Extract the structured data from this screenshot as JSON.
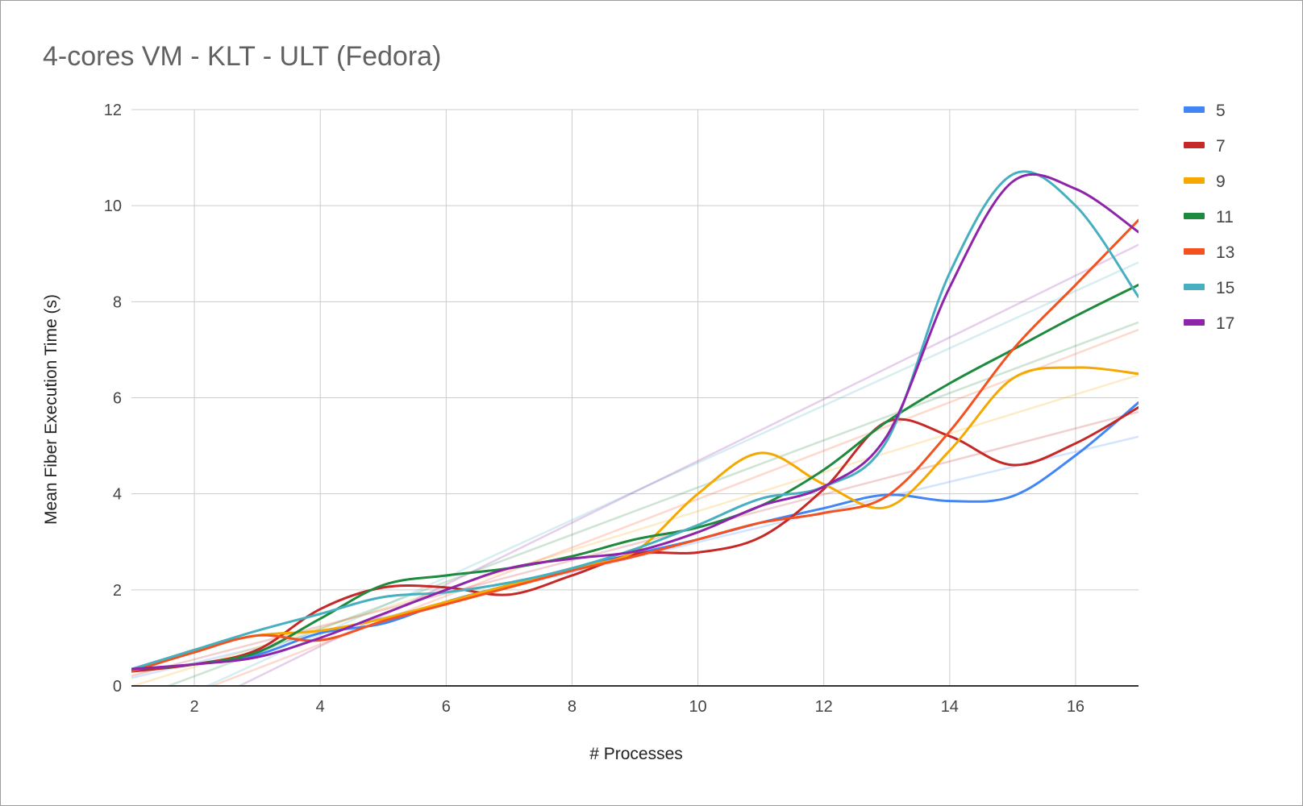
{
  "chart_data": {
    "type": "line",
    "title": "4-cores VM - KLT - ULT (Fedora)",
    "xlabel": "# Processes",
    "ylabel": "Mean Fiber Execution Time (s)",
    "xlim": [
      1,
      17
    ],
    "ylim": [
      0,
      12
    ],
    "xticks": [
      2,
      4,
      6,
      8,
      10,
      12,
      14,
      16
    ],
    "yticks": [
      0,
      2,
      4,
      6,
      8,
      10,
      12
    ],
    "grid": true,
    "legend": "right",
    "smooth": true,
    "trendlines": true,
    "x": [
      1,
      2,
      3,
      4,
      5,
      6,
      7,
      8,
      9,
      10,
      11,
      12,
      13,
      14,
      15,
      16,
      17
    ],
    "series": [
      {
        "name": "5",
        "color": "#4285f4",
        "values": [
          0.35,
          0.45,
          0.65,
          1.1,
          1.3,
          1.75,
          2.1,
          2.45,
          2.75,
          3.05,
          3.4,
          3.7,
          3.98,
          3.85,
          3.95,
          4.8,
          5.9
        ]
      },
      {
        "name": "7",
        "color": "#c62828",
        "values": [
          0.3,
          0.45,
          0.75,
          1.6,
          2.05,
          2.05,
          1.9,
          2.3,
          2.75,
          2.78,
          3.1,
          4.1,
          5.5,
          5.2,
          4.6,
          5.05,
          5.8
        ]
      },
      {
        "name": "9",
        "color": "#f4a800",
        "values": [
          0.3,
          0.75,
          1.05,
          1.15,
          1.4,
          1.75,
          2.1,
          2.45,
          2.8,
          4.0,
          4.85,
          4.2,
          3.72,
          4.9,
          6.4,
          6.63,
          6.5
        ]
      },
      {
        "name": "11",
        "color": "#1e8a3e",
        "values": [
          0.35,
          0.45,
          0.7,
          1.4,
          2.1,
          2.3,
          2.45,
          2.7,
          3.05,
          3.3,
          3.75,
          4.5,
          5.5,
          6.3,
          7.0,
          7.7,
          8.35
        ]
      },
      {
        "name": "13",
        "color": "#f4511e",
        "values": [
          0.3,
          0.7,
          1.05,
          0.95,
          1.35,
          1.7,
          2.05,
          2.4,
          2.7,
          3.05,
          3.4,
          3.6,
          3.95,
          5.3,
          7.0,
          8.35,
          9.7
        ]
      },
      {
        "name": "15",
        "color": "#46b0c0",
        "values": [
          0.35,
          0.75,
          1.15,
          1.5,
          1.85,
          1.95,
          2.15,
          2.45,
          2.85,
          3.35,
          3.9,
          4.15,
          5.1,
          8.6,
          10.65,
          10.0,
          8.1
        ]
      },
      {
        "name": "17",
        "color": "#8e24aa",
        "values": [
          0.35,
          0.45,
          0.6,
          1.0,
          1.5,
          2.0,
          2.45,
          2.65,
          2.8,
          3.2,
          3.75,
          4.15,
          5.2,
          8.3,
          10.5,
          10.35,
          9.45
        ]
      }
    ]
  }
}
